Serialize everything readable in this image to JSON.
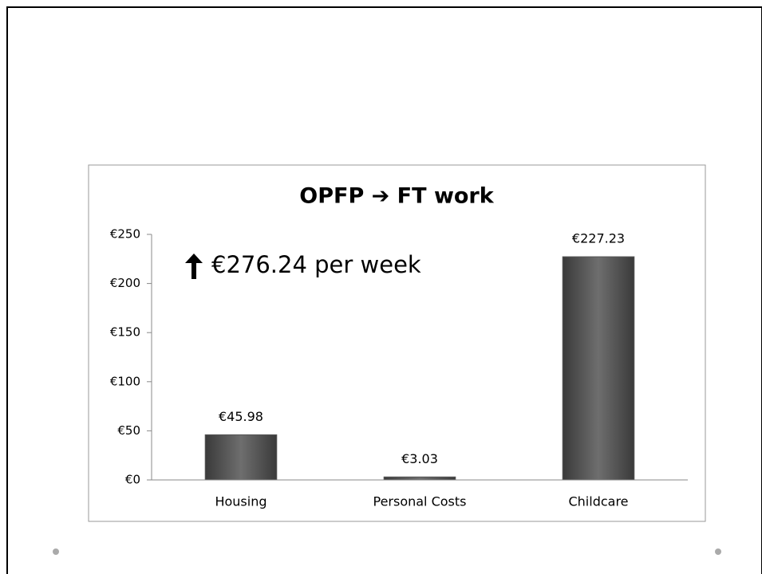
{
  "chart_data": {
    "type": "bar",
    "title": "OPFP ➔ FT work",
    "annotation": "€276.24 per week",
    "categories": [
      "Housing",
      "Personal Costs",
      "Childcare"
    ],
    "values": [
      45.98,
      3.03,
      227.23
    ],
    "value_labels": [
      "€45.98",
      "€3.03",
      "€227.23"
    ],
    "color": "#555555",
    "ylim": [
      0,
      250
    ],
    "yticks": [
      {
        "value": 0,
        "label": "€0"
      },
      {
        "value": 50,
        "label": "€50"
      },
      {
        "value": 100,
        "label": "€100"
      },
      {
        "value": 150,
        "label": "€150"
      },
      {
        "value": 200,
        "label": "€200"
      },
      {
        "value": 250,
        "label": "€250"
      }
    ],
    "grid": false
  }
}
